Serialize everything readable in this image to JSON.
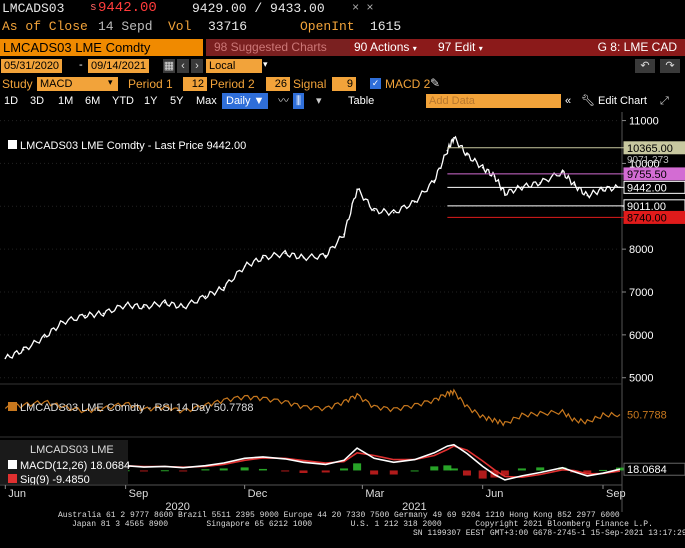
{
  "header": {
    "ticker": "LMCADS03",
    "price_prefix": "s",
    "last_price": "9442.00",
    "bid_ask": "9429.00 / 9433.00",
    "x_mark": "× ×",
    "as_of_label": "As of Close",
    "as_of_date": "14 Sepd",
    "vol_label": "Vol",
    "vol_value": "33716",
    "openint_label": "OpenInt",
    "openint_value": "1615"
  },
  "toolbar": {
    "security_name": "LMCADS03 LME Comdty",
    "suggested": "98 Suggested Charts",
    "actions": "90 Actions",
    "edit": "97 Edit",
    "tab_name": "G 8: LME CAD"
  },
  "range": {
    "start": "05/31/2020",
    "end": "09/14/2021",
    "currency": "Local CCY"
  },
  "study_row": {
    "study_label": "Study",
    "study_value": "MACD",
    "period1_label": "Period 1",
    "period1_value": "12",
    "period2_label": "Period 2",
    "period2_value": "26",
    "signal_label": "Signal",
    "signal_value": "9",
    "macd2_label": "MACD 2"
  },
  "period_bar": {
    "buttons": [
      "1D",
      "3D",
      "1M",
      "6M",
      "YTD",
      "1Y",
      "5Y",
      "Max"
    ],
    "freq": "Daily",
    "table": "Table",
    "add_data": "Add Data",
    "edit_chart": "Edit Chart"
  },
  "chart_data": [
    {
      "type": "line",
      "title": "LMCADS03 LME Comdty - Last Price 9442.00",
      "x_ticks": [
        "Jun",
        "Sep",
        "Dec",
        "Mar",
        "Jun",
        "Sep"
      ],
      "x_years": [
        "2020",
        "2021"
      ],
      "ylim": [
        4900,
        11200
      ],
      "y_ticks": [
        5000,
        6000,
        7000,
        8000,
        9000,
        10000,
        11000
      ],
      "x_range": [
        "2020-05-31",
        "2021-09-14"
      ],
      "series": [
        {
          "name": "LMCADS03 LME Comdty",
          "x": [
            "2020-06-01",
            "2020-06-15",
            "2020-07-01",
            "2020-07-15",
            "2020-08-01",
            "2020-08-15",
            "2020-09-01",
            "2020-09-15",
            "2020-10-01",
            "2020-10-15",
            "2020-11-01",
            "2020-11-15",
            "2020-12-01",
            "2020-12-15",
            "2021-01-01",
            "2021-01-15",
            "2021-02-01",
            "2021-02-15",
            "2021-02-25",
            "2021-03-10",
            "2021-03-25",
            "2021-04-10",
            "2021-04-25",
            "2021-05-05",
            "2021-05-10",
            "2021-05-20",
            "2021-06-01",
            "2021-06-10",
            "2021-06-18",
            "2021-07-01",
            "2021-07-15",
            "2021-08-01",
            "2021-08-10",
            "2021-08-20",
            "2021-09-01",
            "2021-09-14"
          ],
          "values": [
            5450,
            5650,
            5950,
            6300,
            6450,
            6500,
            6700,
            6650,
            6750,
            6650,
            6900,
            7100,
            7600,
            7800,
            7900,
            7800,
            7850,
            8350,
            9400,
            8900,
            8850,
            9100,
            9600,
            10300,
            10600,
            10200,
            9900,
            9700,
            9300,
            9450,
            9550,
            9800,
            9500,
            9250,
            9400,
            9442
          ]
        }
      ],
      "price_tags": [
        {
          "label": "10365.00",
          "value": 10365,
          "color": "#c8c8a0"
        },
        {
          "label": "9755.50",
          "value": 9755.5,
          "color": "#d36cd3"
        },
        {
          "label": "9442.00",
          "value": 9442,
          "color": "#ffffff"
        },
        {
          "label": "9011.00",
          "value": 9011,
          "color": "#ffffff"
        },
        {
          "label": "8740.00",
          "value": 8740,
          "color": "#e01b1b"
        }
      ],
      "partial_tag": "9071.273"
    },
    {
      "type": "line",
      "title": "LMCADS03 LME Comdty - RSI 14 Day 50.7788",
      "series": [
        {
          "name": "RSI 14 Day",
          "values": [
            58,
            62,
            66,
            60,
            55,
            58,
            64,
            57,
            60,
            55,
            62,
            68,
            72,
            70,
            66,
            60,
            58,
            66,
            74,
            60,
            57,
            62,
            68,
            76,
            78,
            60,
            48,
            44,
            40,
            50,
            52,
            54,
            44,
            42,
            50,
            50.78
          ]
        }
      ],
      "last_label": "50.7788"
    },
    {
      "type": "line",
      "title": "LMCADS03 LME",
      "series": [
        {
          "name": "MACD(12,26) 18.0684",
          "values": [
            40,
            60,
            90,
            110,
            80,
            60,
            70,
            50,
            60,
            40,
            70,
            110,
            180,
            200,
            170,
            120,
            90,
            150,
            330,
            180,
            120,
            160,
            260,
            360,
            380,
            250,
            60,
            -60,
            -140,
            -80,
            -30,
            40,
            -20,
            -80,
            -40,
            18.07
          ]
        },
        {
          "name": "Sig(9)",
          "values": [
            30,
            50,
            70,
            90,
            85,
            70,
            68,
            58,
            58,
            48,
            58,
            90,
            150,
            185,
            180,
            145,
            110,
            130,
            260,
            220,
            160,
            160,
            220,
            310,
            360,
            300,
            140,
            10,
            -90,
            -100,
            -60,
            10,
            0,
            -50,
            -45,
            -10
          ]
        }
      ],
      "macd_label": "MACD(12,26) 18.0684",
      "sig_label": "Sig(9) -9.4850",
      "last_label": "18.0684"
    }
  ],
  "footer": {
    "line1": "Australia 61 2 9777 8600 Brazil 5511 2395 9000 Europe 44 20 7330 7500 Germany 49 69 9204 1210 Hong Kong 852 2977 6000",
    "line2": "Japan 81 3 4565 8900        Singapore 65 6212 1000        U.S. 1 212 318 2000       Copyright 2021 Bloomberg Finance L.P.",
    "line3": "SN 1199307 EEST GMT+3:00 G678-2745-1 15-Sep-2021 13:17:29"
  },
  "colors": {
    "orange": "#f2a33a",
    "price_line": "#ffffff",
    "rsi_line": "#c8781e",
    "macd_line": "#ffffff",
    "sig_line": "#e03030",
    "hist_pos": "#2fbf2f",
    "hist_neg": "#d02020"
  }
}
